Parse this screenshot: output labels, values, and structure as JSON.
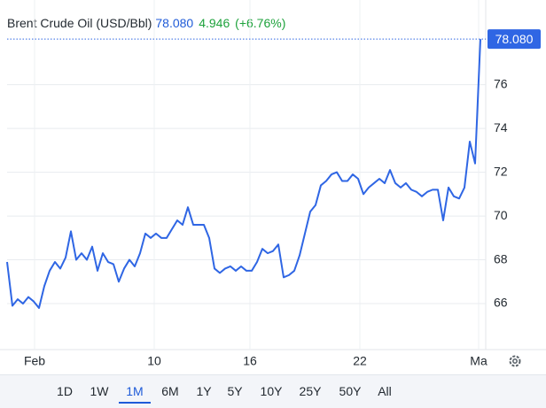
{
  "header": {
    "title": "Brent Crude Oil (USD/Bbl)",
    "price": "78.080",
    "change": "4.946",
    "change_pct": "(+6.76%)"
  },
  "chart_data": {
    "type": "line",
    "color": "#2f66e4",
    "values": [
      67.9,
      65.9,
      66.2,
      66.0,
      66.3,
      66.1,
      65.8,
      66.8,
      67.5,
      67.9,
      67.6,
      68.1,
      69.3,
      68.0,
      68.3,
      68.0,
      68.6,
      67.5,
      68.3,
      67.9,
      67.8,
      67.0,
      67.6,
      68.0,
      67.7,
      68.3,
      69.2,
      69.0,
      69.2,
      69.0,
      69.0,
      69.4,
      69.8,
      69.6,
      70.4,
      69.6,
      69.6,
      69.6,
      69.0,
      67.6,
      67.4,
      67.6,
      67.7,
      67.5,
      67.7,
      67.5,
      67.5,
      67.9,
      68.5,
      68.3,
      68.4,
      68.7,
      67.2,
      67.3,
      67.5,
      68.2,
      69.2,
      70.2,
      70.5,
      71.4,
      71.6,
      71.9,
      72.0,
      71.6,
      71.6,
      71.9,
      71.7,
      71.0,
      71.3,
      71.5,
      71.7,
      71.5,
      72.1,
      71.5,
      71.3,
      71.5,
      71.2,
      71.1,
      70.9,
      71.1,
      71.2,
      71.2,
      69.8,
      71.3,
      70.9,
      70.8,
      71.3,
      73.4,
      72.4,
      78.08
    ],
    "xlim": [
      0,
      90
    ],
    "xticks": [
      {
        "value": 5.17,
        "label": "Feb"
      },
      {
        "value": 27.67,
        "label": "10"
      },
      {
        "value": 45.67,
        "label": "16"
      },
      {
        "value": 66.33,
        "label": "22"
      },
      {
        "value": 88.67,
        "label": "Ma"
      }
    ],
    "ylim": [
      63.9,
      78.45
    ],
    "yticks": [
      66,
      68,
      70,
      72,
      74,
      76
    ],
    "grid": true
  },
  "ranges": {
    "options": [
      "1D",
      "1W",
      "1M",
      "6M",
      "1Y",
      "5Y",
      "10Y",
      "25Y",
      "50Y",
      "All"
    ],
    "selected": 2
  }
}
